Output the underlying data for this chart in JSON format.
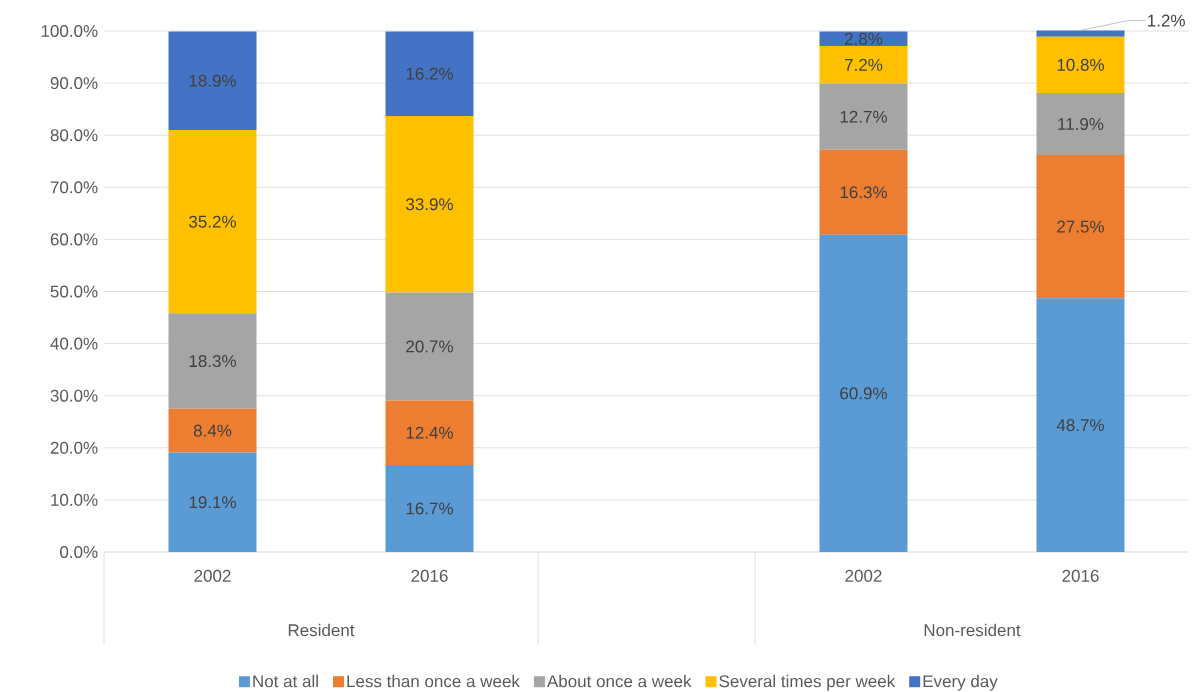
{
  "chart_data": {
    "type": "bar",
    "stacked": true,
    "categories": [
      "2002",
      "2016",
      null,
      "2002",
      "2016"
    ],
    "annotations": [
      "Resident",
      "Non-resident"
    ],
    "series": [
      {
        "name": "Not at all",
        "color": "#5b9bd5",
        "values": [
          19.1,
          16.7,
          null,
          60.9,
          48.7
        ],
        "value_labels": [
          "19.1%",
          "16.7%",
          null,
          "60.9%",
          "48.7%"
        ]
      },
      {
        "name": "Less than once a week",
        "color": "#ed7d31",
        "values": [
          8.4,
          12.4,
          null,
          16.3,
          27.5
        ],
        "value_labels": [
          "8.4%",
          "12.4%",
          null,
          "16.3%",
          "27.5%"
        ]
      },
      {
        "name": "About once a week",
        "color": "#a5a5a5",
        "values": [
          18.3,
          20.7,
          null,
          12.7,
          11.9
        ],
        "value_labels": [
          "18.3%",
          "20.7%",
          null,
          "12.7%",
          "11.9%"
        ]
      },
      {
        "name": "Several times per week",
        "color": "#ffc000",
        "values": [
          35.2,
          33.9,
          null,
          7.2,
          10.8
        ],
        "value_labels": [
          "35.2%",
          "33.9%",
          null,
          "7.2%",
          "10.8%"
        ]
      },
      {
        "name": "Every day",
        "color": "#4472c4",
        "values": [
          18.9,
          16.2,
          null,
          2.8,
          1.2
        ],
        "value_labels": [
          "18.9%",
          "16.2%",
          null,
          "2.8%",
          "1.2%"
        ]
      }
    ],
    "ylim": [
      0,
      100
    ],
    "yticks": [
      {
        "value": 0,
        "label": "0.0%"
      },
      {
        "value": 10,
        "label": "10.0%"
      },
      {
        "value": 20,
        "label": "20.0%"
      },
      {
        "value": 30,
        "label": "30.0%"
      },
      {
        "value": 40,
        "label": "40.0%"
      },
      {
        "value": 50,
        "label": "50.0%"
      },
      {
        "value": 60,
        "label": "60.0%"
      },
      {
        "value": 70,
        "label": "70.0%"
      },
      {
        "value": 80,
        "label": "80.0%"
      },
      {
        "value": 90,
        "label": "90.0%"
      },
      {
        "value": 100,
        "label": "100.0%"
      }
    ],
    "grid": "y",
    "legend": "bottom"
  }
}
